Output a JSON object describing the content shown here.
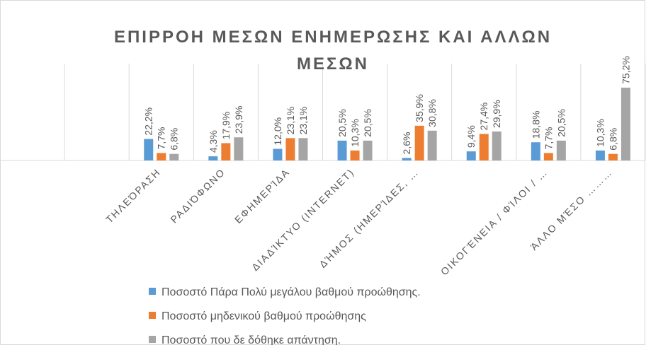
{
  "chart_data": {
    "type": "bar",
    "title": "ΕΠΙΡΡΟΗ ΜΕΣΩΝ ΕΝΗΜΕΡΩΣΗΣ ΚΑΙ ΑΛΛΩΝ ΜΕΣΩΝ",
    "categories": [
      null,
      null,
      "ΤΗΛΕΌΡΑΣΗ",
      "ΡΑΔΙΌΦΩΝΟ",
      "ΕΦΗΜΕΡΊΔΑ",
      "ΔΙΑΔΊΚΤΥΟ (INTERNET)",
      "ΔΉΜΟΣ (ΗΜΕΡΊΔΕΣ, …",
      null,
      "ΟΙΚΟΓΈΝΕΙΑ / ΦΊΛΟΙ / …",
      "ΆΛΛΟ ΜΈΣΟ ………"
    ],
    "series": [
      {
        "name": "Ποσοστό Πάρα Πολύ μεγάλου βαθμού προώθησης.",
        "color": "#5b9bd5",
        "values": [
          null,
          null,
          22.2,
          4.3,
          12.0,
          20.5,
          2.6,
          9.4,
          18.8,
          10.3
        ],
        "value_labels": [
          null,
          null,
          "22,2%",
          "4,3%",
          "12,0%",
          "20,5%",
          "2,6%",
          "9,4%",
          "18,8%",
          "10,3%"
        ]
      },
      {
        "name": "Ποσοστό μηδενικού βαθμού προώθησης",
        "color": "#ed7d31",
        "values": [
          null,
          null,
          7.7,
          17.9,
          23.1,
          10.3,
          35.9,
          27.4,
          7.7,
          6.8
        ],
        "value_labels": [
          null,
          null,
          "7,7%",
          "17,9%",
          "23,1%",
          "10,3%",
          "35,9%",
          "27,4%",
          "7,7%",
          "6,8%"
        ]
      },
      {
        "name": "Ποσοστό που δε δόθηκε απάντηση.",
        "color": "#a5a5a5",
        "values": [
          null,
          null,
          6.8,
          23.9,
          23.1,
          20.5,
          30.8,
          29.9,
          20.5,
          75.2
        ],
        "value_labels": [
          null,
          null,
          "6,8%",
          "23,9%",
          "23,1%",
          "20,5%",
          "30,8%",
          "29,9%",
          "20,5%",
          "75,2%"
        ]
      }
    ],
    "ylim": [
      0,
      100
    ]
  }
}
